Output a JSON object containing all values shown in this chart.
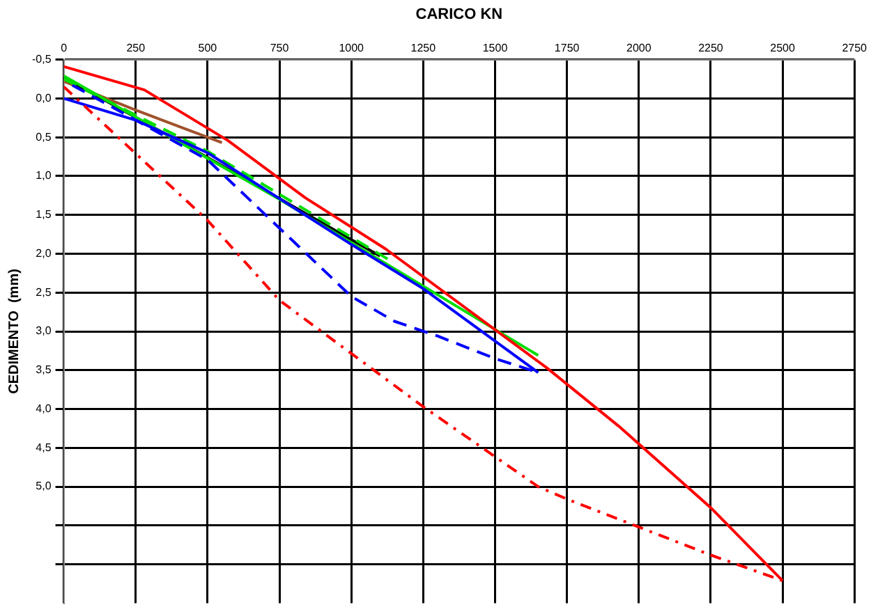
{
  "chart_data": {
    "type": "line",
    "xlabel": "CARICO KN",
    "ylabel": "CEDIMENTO  (mm)",
    "xlim": [
      0,
      2750
    ],
    "xticks": [
      0,
      250,
      500,
      750,
      1000,
      1250,
      1500,
      1750,
      2000,
      2250,
      2500,
      2750
    ],
    "ylim": [
      6.5,
      -0.5
    ],
    "yticks": [
      {
        "value": -0.5,
        "label": "-0,5"
      },
      {
        "value": 0,
        "label": "0,0"
      },
      {
        "value": 0.5,
        "label": "0,5"
      },
      {
        "value": 1,
        "label": "1,0"
      },
      {
        "value": 1.5,
        "label": "1,5"
      },
      {
        "value": 2,
        "label": "2,0"
      },
      {
        "value": 2.5,
        "label": "2,5"
      },
      {
        "value": 3,
        "label": "3,0"
      },
      {
        "value": 3.5,
        "label": "3,5"
      },
      {
        "value": 4,
        "label": "4,0"
      },
      {
        "value": 4.5,
        "label": "4,5"
      },
      {
        "value": 5,
        "label": "5,0"
      },
      {
        "value": 5.5,
        "label": null
      },
      {
        "value": 6,
        "label": null
      }
    ],
    "grid": true,
    "marker": "none",
    "series": [
      {
        "color": "#ff0000",
        "line_style": "solid",
        "x": [
          0,
          280,
          570,
          840,
          1120,
          1680,
          1930,
          2250,
          2500
        ],
        "values": [
          -0.41,
          -0.11,
          0.54,
          1.28,
          1.94,
          3.47,
          4.22,
          5.27,
          6.21
        ]
      },
      {
        "color": "#ff0000",
        "line_style": "dotted",
        "x": [
          0,
          500,
          750,
          1250,
          1650,
          1750,
          2250,
          2500
        ],
        "values": [
          -0.15,
          1.57,
          2.6,
          3.97,
          5.0,
          5.16,
          5.88,
          6.21
        ]
      },
      {
        "color": "#0000ff",
        "line_style": "dashed",
        "x": [
          30,
          500,
          1000,
          1150,
          1300,
          1500,
          1650
        ],
        "values": [
          -0.17,
          0.79,
          2.55,
          2.87,
          3.06,
          3.35,
          3.53
        ]
      },
      {
        "color": "#0000ff",
        "line_style": "solid",
        "x": [
          0,
          250,
          500,
          1000,
          1250,
          1650
        ],
        "values": [
          0,
          0.28,
          0.7,
          1.88,
          2.45,
          3.53
        ]
      },
      {
        "color": "#00dd00",
        "line_style": "solid",
        "x": [
          0,
          750,
          1650
        ],
        "values": [
          -0.29,
          1.3,
          3.31
        ]
      },
      {
        "color": "#00dd00",
        "line_style": "dashed",
        "x": [
          0,
          500,
          1150
        ],
        "values": [
          -0.25,
          0.68,
          2.12
        ]
      },
      {
        "color": "#000000",
        "line_style": "solid",
        "x": [
          0,
          500,
          1100
        ],
        "values": [
          -0.27,
          0.76,
          2.03
        ]
      },
      {
        "color": "#a0522d",
        "line_style": "solid",
        "x": [
          0,
          250,
          550
        ],
        "values": [
          -0.22,
          0.15,
          0.57
        ]
      }
    ]
  }
}
